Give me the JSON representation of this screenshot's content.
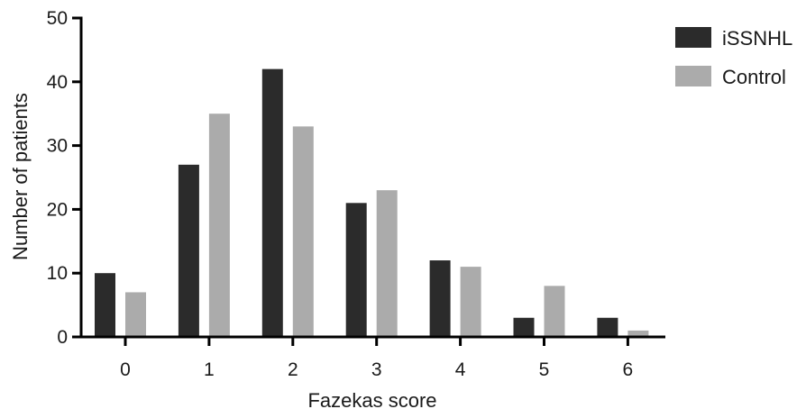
{
  "chart_data": {
    "type": "bar",
    "xlabel": "Fazekas score",
    "ylabel": "Number of patients",
    "categories": [
      "0",
      "1",
      "2",
      "3",
      "4",
      "5",
      "6"
    ],
    "ylim": [
      0,
      50
    ],
    "yticks": [
      0,
      10,
      20,
      30,
      40,
      50
    ],
    "series": [
      {
        "name": "iSSNHL",
        "color": "#2b2b2b",
        "values": [
          10,
          27,
          42,
          21,
          12,
          3,
          3
        ]
      },
      {
        "name": "Control",
        "color": "#ababab",
        "values": [
          7,
          35,
          33,
          23,
          11,
          8,
          1
        ]
      }
    ],
    "legend_position": "top-right",
    "grid": false
  }
}
